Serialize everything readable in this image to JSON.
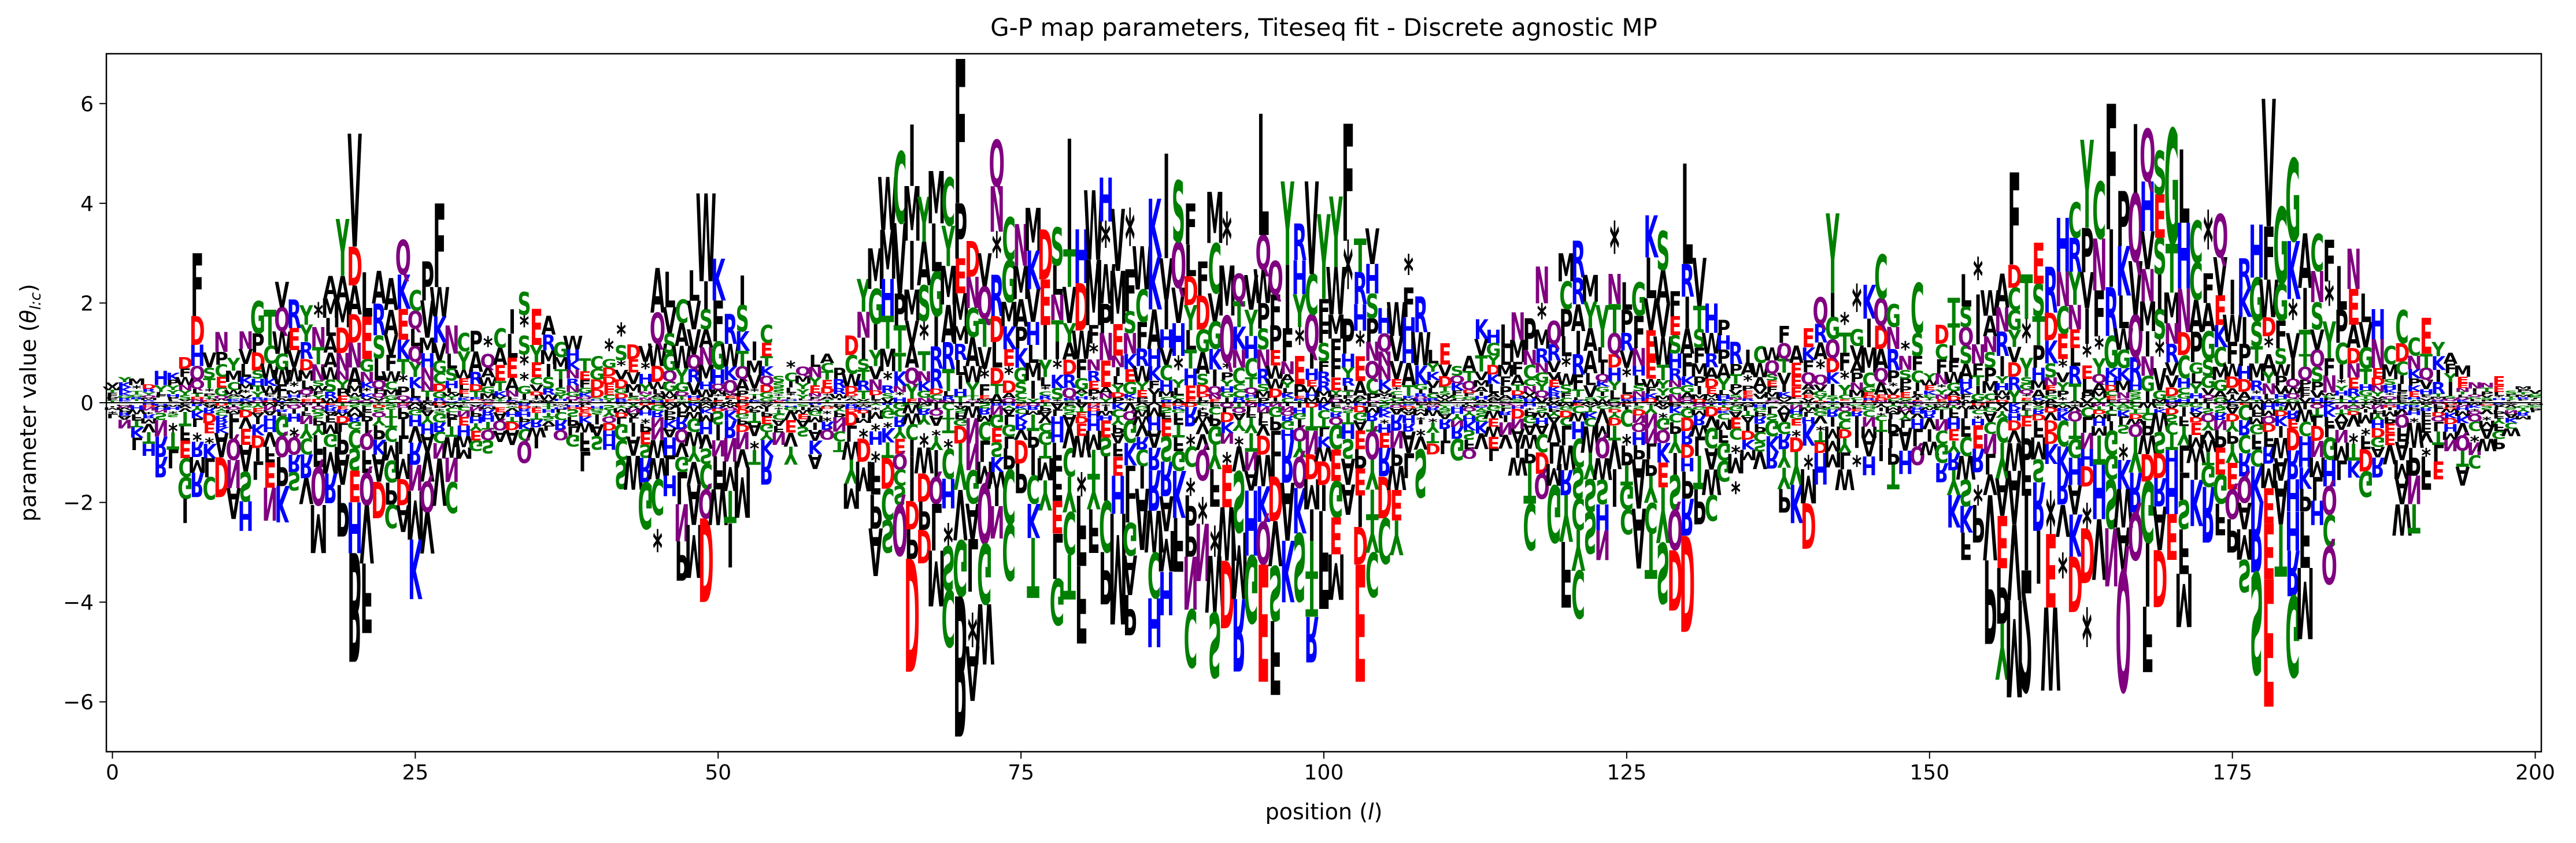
{
  "chart_data": {
    "type": "logo",
    "title": "G-P map parameters, Titeseq fit - Discrete agnostic MP",
    "xlabel": "position (",
    "xlabel_var": "l",
    "xlabel_tail": ")",
    "ylabel": "parameter value (",
    "ylabel_var": "θ",
    "ylabel_sub": "l:c",
    "ylabel_tail": ")",
    "xlim": [
      -0.5,
      200.5
    ],
    "ylim": [
      -7,
      7
    ],
    "xticks": [
      0,
      25,
      50,
      75,
      100,
      125,
      150,
      175,
      200
    ],
    "xtick_labels": [
      "0",
      "25",
      "50",
      "75",
      "100",
      "125",
      "150",
      "175",
      "200"
    ],
    "yticks": [
      -6,
      -4,
      -2,
      0,
      2,
      4,
      6
    ],
    "ytick_labels": [
      "−6",
      "−4",
      "−2",
      "0",
      "2",
      "4",
      "6"
    ],
    "zero_line": true,
    "grid": false,
    "alphabet": [
      "A",
      "C",
      "D",
      "E",
      "F",
      "G",
      "H",
      "I",
      "K",
      "L",
      "M",
      "N",
      "P",
      "Q",
      "R",
      "S",
      "T",
      "V",
      "W",
      "Y",
      "*"
    ],
    "colors": {
      "C": "#008000",
      "G": "#008000",
      "S": "#008000",
      "T": "#008000",
      "Y": "#008000",
      "D": "#ff0000",
      "E": "#ff0000",
      "H": "#0000ff",
      "K": "#0000ff",
      "R": "#0000ff",
      "N": "#800080",
      "Q": "#800080",
      "A": "#000000",
      "F": "#000000",
      "I": "#000000",
      "L": "#000000",
      "M": "#000000",
      "P": "#000000",
      "V": "#000000",
      "W": "#000000",
      "*": "#000000"
    },
    "envelope": {
      "positions": [
        0,
        5,
        10,
        15,
        20,
        25,
        30,
        35,
        40,
        45,
        50,
        55,
        60,
        65,
        70,
        75,
        80,
        85,
        90,
        95,
        100,
        105,
        110,
        115,
        120,
        125,
        130,
        135,
        140,
        145,
        150,
        155,
        160,
        165,
        170,
        175,
        180,
        185,
        190,
        195,
        200
      ],
      "positive_max": [
        0.5,
        1.0,
        1.6,
        3.0,
        5.4,
        4.0,
        1.6,
        2.8,
        1.0,
        2.8,
        4.2,
        1.2,
        1.0,
        5.8,
        6.9,
        4.2,
        5.0,
        5.0,
        5.3,
        3.8,
        5.7,
        4.2,
        1.5,
        2.0,
        4.0,
        4.2,
        4.8,
        2.0,
        2.0,
        3.5,
        1.0,
        4.8,
        6.0,
        6.0,
        5.6,
        5.3,
        6.1,
        3.5,
        1.8,
        0.7,
        0.3
      ],
      "negative_min": [
        -0.5,
        -2.5,
        -2.8,
        -2.6,
        -5.5,
        -4.0,
        -1.5,
        -1.2,
        -1.5,
        -4.0,
        -4.2,
        -1.2,
        -1.5,
        -6.0,
        -6.8,
        -4.0,
        -5.0,
        -5.0,
        -5.5,
        -6.0,
        -5.6,
        -4.0,
        -1.5,
        -2.0,
        -4.5,
        -4.5,
        -4.8,
        -2.0,
        -3.2,
        -2.4,
        -1.5,
        -6.0,
        -6.0,
        -5.8,
        -5.3,
        -5.3,
        -6.2,
        -2.5,
        -2.8,
        -1.5,
        -0.3
      ]
    },
    "peaks": [
      {
        "pos": 7,
        "letter": "F",
        "value": 3.0
      },
      {
        "pos": 20,
        "letter": "V",
        "value": 5.4
      },
      {
        "pos": 20,
        "letter": "B",
        "value": -5.2
      },
      {
        "pos": 27,
        "letter": "F",
        "value": 4.0
      },
      {
        "pos": 49,
        "letter": "W",
        "value": 4.2
      },
      {
        "pos": 49,
        "letter": "D",
        "value": -4.0
      },
      {
        "pos": 66,
        "letter": "D",
        "value": -5.4
      },
      {
        "pos": 70,
        "letter": "F",
        "value": 6.9
      },
      {
        "pos": 70,
        "letter": "B",
        "value": -6.7
      },
      {
        "pos": 79,
        "letter": "I",
        "value": 5.3
      },
      {
        "pos": 87,
        "letter": "I",
        "value": 5.0
      },
      {
        "pos": 95,
        "letter": "L",
        "value": 5.8
      },
      {
        "pos": 95,
        "letter": "E",
        "value": -5.6
      },
      {
        "pos": 102,
        "letter": "F",
        "value": 5.6
      },
      {
        "pos": 103,
        "letter": "E",
        "value": -5.6
      },
      {
        "pos": 130,
        "letter": "L",
        "value": 4.8
      },
      {
        "pos": 130,
        "letter": "D",
        "value": -4.6
      },
      {
        "pos": 142,
        "letter": "Y",
        "value": 3.8
      },
      {
        "pos": 149,
        "letter": "C",
        "value": 2.4
      },
      {
        "pos": 158,
        "letter": "2",
        "value": -5.8
      },
      {
        "pos": 165,
        "letter": "F",
        "value": 6.0
      },
      {
        "pos": 166,
        "letter": "Q",
        "value": -5.8
      },
      {
        "pos": 170,
        "letter": "G",
        "value": 5.5
      },
      {
        "pos": 178,
        "letter": "V",
        "value": 6.1
      },
      {
        "pos": 178,
        "letter": "E",
        "value": -6.1
      },
      {
        "pos": 191,
        "letter": "E",
        "value": 1.7
      }
    ]
  }
}
